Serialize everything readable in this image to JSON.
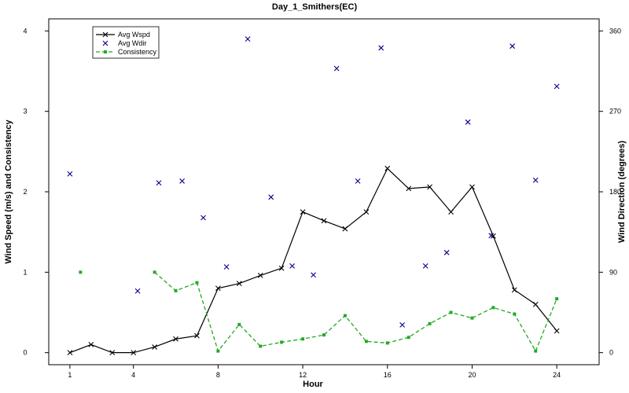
{
  "chart_data": {
    "type": "line",
    "title": "Day_1_Smithers(EC)",
    "xlabel": "Hour",
    "ylabel_left": "Wind Speed (m/s) and Consistency",
    "ylabel_right": "Wind Direction (degrees)",
    "xlim": [
      0,
      26
    ],
    "ylim_left": [
      -0.15,
      4.15
    ],
    "ylim_right": [
      -13.5,
      373.5
    ],
    "xticks": [
      1,
      4,
      8,
      12,
      16,
      20,
      24
    ],
    "yticks_left": [
      0,
      1,
      2,
      3,
      4
    ],
    "yticks_right": [
      0,
      90,
      180,
      270,
      360
    ],
    "grid": false,
    "legend_position": "top-left",
    "series": [
      {
        "name": "Avg Wspd",
        "axis": "left",
        "style": "line-x",
        "color": "#000000",
        "x": [
          1,
          2,
          3,
          4,
          5,
          6,
          7,
          8,
          9,
          10,
          11,
          12,
          13,
          14,
          15,
          16,
          17,
          18,
          19,
          20,
          21,
          22,
          23,
          24
        ],
        "y": [
          0.0,
          0.1,
          0.0,
          0.0,
          0.07,
          0.17,
          0.21,
          0.8,
          0.86,
          0.96,
          1.05,
          1.75,
          1.64,
          1.54,
          1.75,
          2.29,
          2.04,
          2.06,
          1.75,
          2.06,
          1.45,
          0.78,
          0.6,
          0.27
        ]
      },
      {
        "name": "Avg Wdir",
        "axis": "right",
        "style": "points-x",
        "color": "#00008b",
        "x": [
          1,
          4.2,
          5.2,
          6.3,
          7.3,
          8.4,
          9.4,
          10.5,
          11.5,
          12.5,
          13.6,
          14.6,
          15.7,
          16.7,
          17.8,
          18.8,
          19.8,
          20.9,
          21.9,
          23.0,
          24.0
        ],
        "y": [
          200,
          69,
          190,
          192,
          151,
          96,
          351,
          174,
          97,
          87,
          318,
          192,
          341,
          31,
          97,
          112,
          258,
          131,
          343,
          193,
          298
        ]
      },
      {
        "name": "Consistency",
        "axis": "left",
        "style": "dashed-square",
        "color": "#22aa22",
        "segments": [
          {
            "x": [
              1.5
            ],
            "y": [
              1.0
            ]
          },
          {
            "x": [
              5,
              6,
              7,
              8,
              9,
              10,
              11,
              12,
              13,
              14,
              15,
              16,
              17,
              18,
              19,
              20,
              21,
              22,
              23,
              24
            ],
            "y": [
              1.0,
              0.77,
              0.87,
              0.02,
              0.35,
              0.08,
              0.13,
              0.17,
              0.22,
              0.46,
              0.14,
              0.12,
              0.19,
              0.36,
              0.5,
              0.43,
              0.56,
              0.48,
              0.02,
              0.67
            ]
          }
        ]
      }
    ]
  }
}
